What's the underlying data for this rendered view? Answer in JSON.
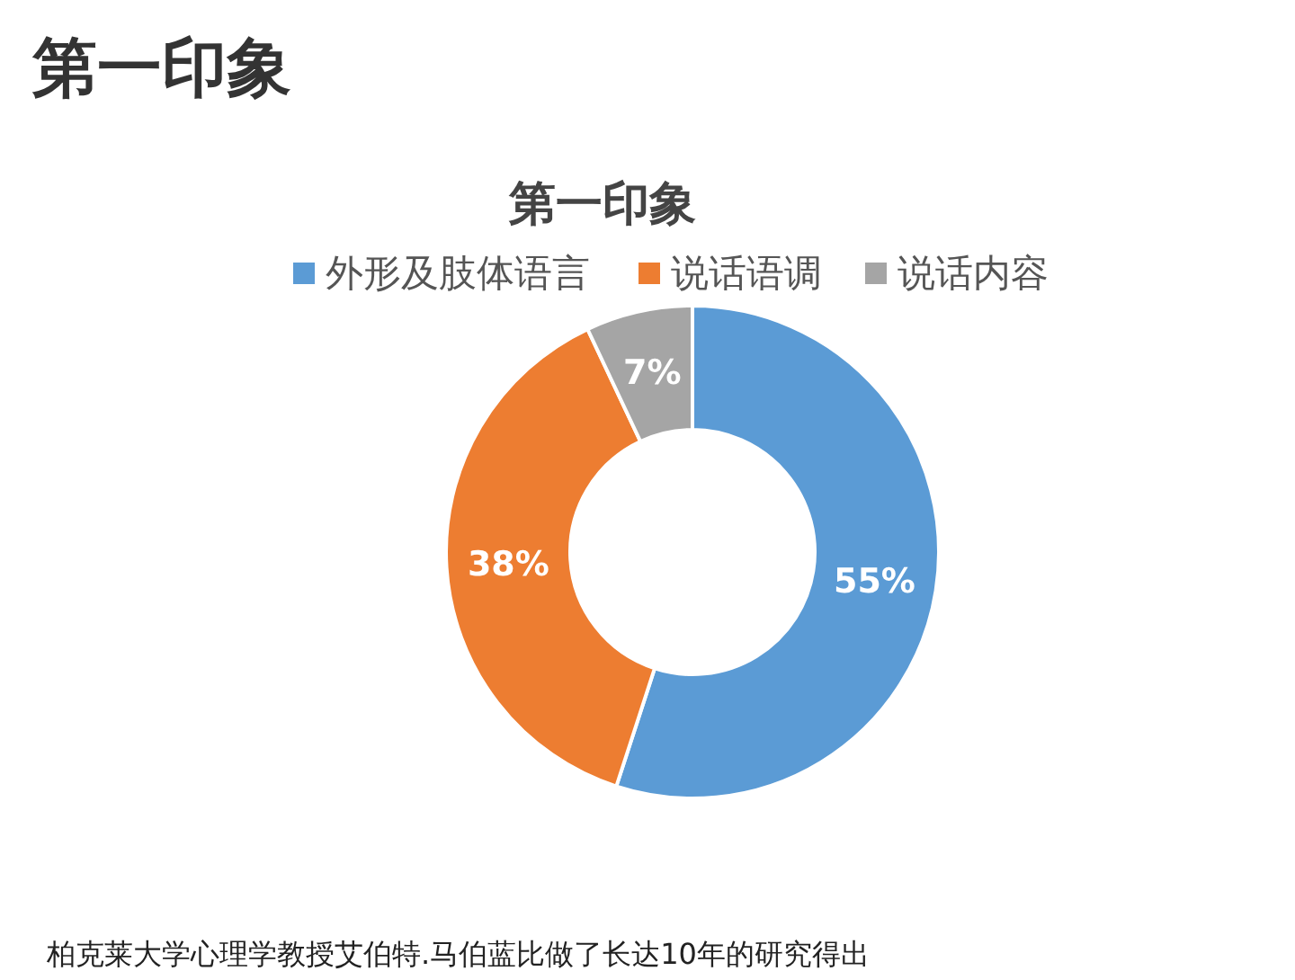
{
  "chart_data": {
    "type": "donut",
    "title": "第一印象",
    "subtitle": "第一印象",
    "categories": [
      "外形及肢体语言",
      "说话语调",
      "说话内容"
    ],
    "values": [
      55,
      38,
      7
    ],
    "colors": [
      "#5b9bd5",
      "#ed7d31",
      "#a5a5a5"
    ],
    "value_labels": [
      "55%",
      "38%",
      "7%"
    ],
    "legend": "top",
    "annotations": [
      "柏克莱大学心理学教授艾伯特.马伯蓝比做了长达10年的研究得出"
    ]
  }
}
